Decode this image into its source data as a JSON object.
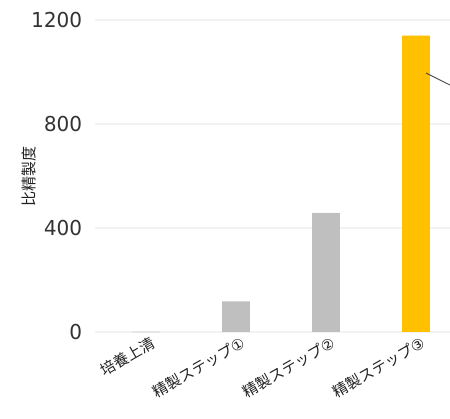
{
  "chart_data": {
    "type": "bar",
    "title": "",
    "xlabel": "",
    "ylabel": "比精製度",
    "categories": [
      "培養上清",
      "精製ステップ①",
      "精製ステップ②",
      "精製ステップ③"
    ],
    "values": [
      1,
      118,
      458,
      1140
    ],
    "bar_colors": [
      "#bfbfbf",
      "#bfbfbf",
      "#bfbfbf",
      "#ffc000"
    ],
    "ylim": [
      0,
      1200
    ],
    "yticks": [
      0,
      400,
      800,
      1200
    ],
    "ytick_labels": [
      "0",
      "400",
      "800",
      "1200"
    ],
    "grid": true,
    "legend": "none"
  }
}
